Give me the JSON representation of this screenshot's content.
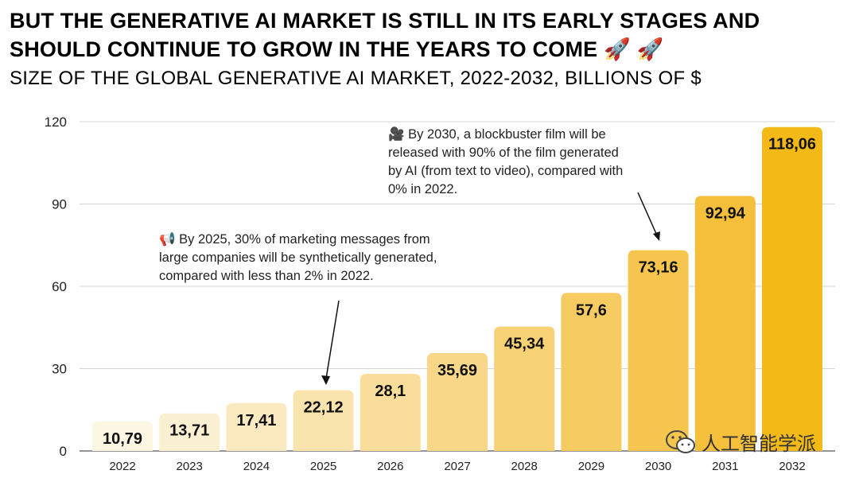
{
  "title_line1": "BUT THE GENERATIVE AI MARKET IS STILL IN ITS EARLY STAGES AND",
  "title_line2": "SHOULD CONTINUE TO GROW IN THE YEARS TO COME 🚀 🚀",
  "subtitle": "SIZE OF THE GLOBAL GENERATIVE AI MARKET, 2022-2032, BILLIONS OF $",
  "annotations": {
    "a2025": {
      "icon": "📢",
      "lines": [
        "By 2025, 30% of marketing messages from",
        "large companies will be synthetically generated,",
        "compared with less than 2% in 2022."
      ]
    },
    "a2030": {
      "icon": "🎥",
      "lines": [
        "By 2030, a blockbuster film will be",
        "released with 90% of the film generated",
        "by AI (from text to video), compared with",
        "0% in 2022."
      ]
    }
  },
  "watermark": "人工智能学派",
  "chart_data": {
    "type": "bar",
    "title": "SIZE OF THE GLOBAL GENERATIVE AI MARKET, 2022-2032, BILLIONS OF $",
    "xlabel": "",
    "ylabel": "",
    "categories": [
      "2022",
      "2023",
      "2024",
      "2025",
      "2026",
      "2027",
      "2028",
      "2029",
      "2030",
      "2031",
      "2032"
    ],
    "values": [
      10.79,
      13.71,
      17.41,
      22.12,
      28.1,
      35.69,
      45.34,
      57.6,
      73.16,
      92.94,
      118.06
    ],
    "labels": [
      "10,79",
      "13,71",
      "17,41",
      "22,12",
      "28,1",
      "35,69",
      "45,34",
      "57,6",
      "73,16",
      "92,94",
      "118,06"
    ],
    "yticks": [
      0,
      30,
      60,
      90,
      120
    ],
    "ylim": [
      0,
      120
    ],
    "grid": true,
    "colors": [
      "#FDF6E3",
      "#FCF0D2",
      "#FBEAC0",
      "#FAE4AE",
      "#F9DE9B",
      "#F8D888",
      "#F7D275",
      "#F6CB61",
      "#F5C54D",
      "#F4BF3A",
      "#F3B917"
    ]
  }
}
